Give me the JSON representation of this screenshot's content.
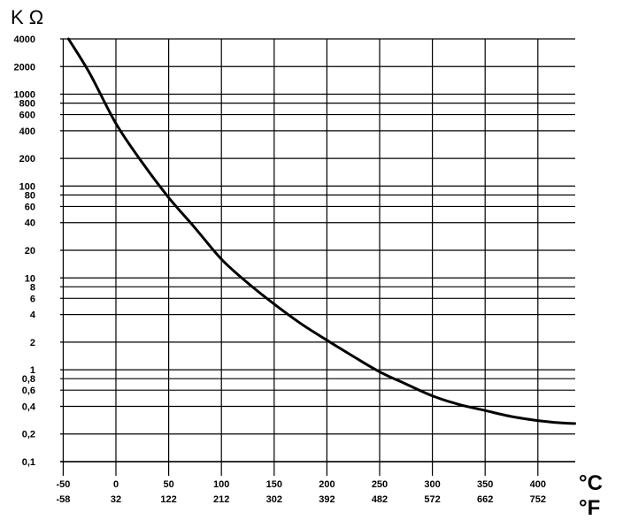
{
  "chart_data": {
    "type": "line",
    "y_unit_label": "K Ω",
    "x_unit_primary": "°C",
    "x_unit_secondary": "°F",
    "y_scale": "log",
    "ylim": [
      0.1,
      4000
    ],
    "xlim": [
      -50,
      435
    ],
    "grid": true,
    "y_ticks": [
      {
        "value": 4000,
        "label": "4000"
      },
      {
        "value": 2000,
        "label": "2000"
      },
      {
        "value": 1000,
        "label": "1000"
      },
      {
        "value": 800,
        "label": "800"
      },
      {
        "value": 600,
        "label": "600"
      },
      {
        "value": 400,
        "label": "400"
      },
      {
        "value": 200,
        "label": "200"
      },
      {
        "value": 100,
        "label": "100"
      },
      {
        "value": 80,
        "label": "80"
      },
      {
        "value": 60,
        "label": "60"
      },
      {
        "value": 40,
        "label": "40"
      },
      {
        "value": 20,
        "label": "20"
      },
      {
        "value": 10,
        "label": "10"
      },
      {
        "value": 8,
        "label": "8"
      },
      {
        "value": 6,
        "label": "6"
      },
      {
        "value": 4,
        "label": "4"
      },
      {
        "value": 2,
        "label": "2"
      },
      {
        "value": 1,
        "label": "1"
      },
      {
        "value": 0.8,
        "label": "0,8"
      },
      {
        "value": 0.6,
        "label": "0,6"
      },
      {
        "value": 0.4,
        "label": "0,4"
      },
      {
        "value": 0.2,
        "label": "0,2"
      },
      {
        "value": 0.1,
        "label": "0,1"
      }
    ],
    "x_ticks": [
      {
        "value": -50,
        "celsius": "-50",
        "fahrenheit": "-58"
      },
      {
        "value": 0,
        "celsius": "0",
        "fahrenheit": "32"
      },
      {
        "value": 50,
        "celsius": "50",
        "fahrenheit": "122"
      },
      {
        "value": 100,
        "celsius": "100",
        "fahrenheit": "212"
      },
      {
        "value": 150,
        "celsius": "150",
        "fahrenheit": "302"
      },
      {
        "value": 200,
        "celsius": "200",
        "fahrenheit": "392"
      },
      {
        "value": 250,
        "celsius": "250",
        "fahrenheit": "482"
      },
      {
        "value": 300,
        "celsius": "300",
        "fahrenheit": "572"
      },
      {
        "value": 350,
        "celsius": "350",
        "fahrenheit": "662"
      },
      {
        "value": 400,
        "celsius": "400",
        "fahrenheit": "752"
      }
    ],
    "series": [
      {
        "color": "#000000",
        "points": [
          {
            "x": -45,
            "y": 4000
          },
          {
            "x": -25,
            "y": 1700
          },
          {
            "x": 0,
            "y": 480
          },
          {
            "x": 25,
            "y": 180
          },
          {
            "x": 50,
            "y": 75
          },
          {
            "x": 75,
            "y": 35
          },
          {
            "x": 100,
            "y": 16
          },
          {
            "x": 125,
            "y": 8.8
          },
          {
            "x": 150,
            "y": 5.2
          },
          {
            "x": 175,
            "y": 3.2
          },
          {
            "x": 200,
            "y": 2.1
          },
          {
            "x": 225,
            "y": 1.4
          },
          {
            "x": 250,
            "y": 0.95
          },
          {
            "x": 275,
            "y": 0.7
          },
          {
            "x": 300,
            "y": 0.52
          },
          {
            "x": 325,
            "y": 0.42
          },
          {
            "x": 350,
            "y": 0.36
          },
          {
            "x": 375,
            "y": 0.31
          },
          {
            "x": 400,
            "y": 0.28
          },
          {
            "x": 420,
            "y": 0.265
          },
          {
            "x": 435,
            "y": 0.26
          }
        ]
      }
    ]
  }
}
